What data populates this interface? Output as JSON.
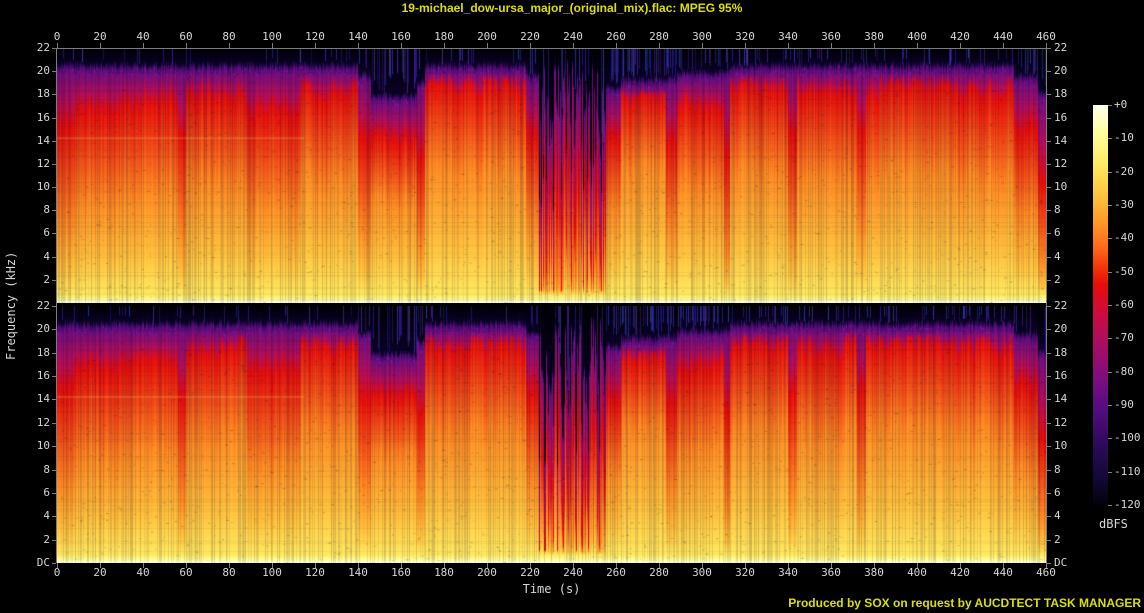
{
  "title": "19-michael_dow-ursa_major_(original_mix).flac: MPEG 95%",
  "footer": "Produced by SOX on request by AUCDTECT TASK MANAGER",
  "colors": {
    "background": "#000000",
    "title_text": "#dede00",
    "footer_text": "#dede00",
    "axis_text": "#d6d6d6",
    "axis_line": "#7d7d7d"
  },
  "chart_data": {
    "type": "heatmap",
    "subtype": "stereo-audio-spectrogram",
    "xlabel": "Time (s)",
    "ylabel": "Frequency (kHz)",
    "x_range_s": [
      0,
      460
    ],
    "freq_range_khz": [
      0,
      22
    ],
    "x_ticks_s": [
      0,
      20,
      40,
      60,
      80,
      100,
      120,
      140,
      160,
      180,
      200,
      220,
      240,
      260,
      280,
      300,
      320,
      340,
      360,
      380,
      400,
      420,
      440,
      460
    ],
    "freq_tick_labels": [
      "22",
      "20",
      "18",
      "16",
      "14",
      "12",
      "10",
      "8",
      "6",
      "4",
      "2",
      "DC"
    ],
    "channels": [
      {
        "name": "left",
        "seed": 11
      },
      {
        "name": "right",
        "seed": 47
      }
    ],
    "colorbar": {
      "unit": "dBFS",
      "range_db": [
        0,
        -120
      ],
      "tick_labels": [
        "+0",
        "-10",
        "-20",
        "-30",
        "-40",
        "-50",
        "-60",
        "-70",
        "-80",
        "-90",
        "-100",
        "-110",
        "-120"
      ],
      "stops": [
        [
          0.0,
          "#ffffec"
        ],
        [
          0.07,
          "#ffff9d"
        ],
        [
          0.15,
          "#ffe95f"
        ],
        [
          0.23,
          "#ffc13d"
        ],
        [
          0.3,
          "#ff9426"
        ],
        [
          0.36,
          "#fb6518"
        ],
        [
          0.41,
          "#f03209"
        ],
        [
          0.45,
          "#e60d0b"
        ],
        [
          0.52,
          "#cc0c3f"
        ],
        [
          0.6,
          "#a80e63"
        ],
        [
          0.68,
          "#7f0e7d"
        ],
        [
          0.75,
          "#5a0d82"
        ],
        [
          0.81,
          "#3d0b6b"
        ],
        [
          0.87,
          "#260a52"
        ],
        [
          0.93,
          "#150837"
        ],
        [
          1.0,
          "#03010f"
        ]
      ]
    },
    "mpeg_lowpass_khz": 20.4,
    "segments": [
      {
        "t0": 0,
        "t1": 8,
        "i": 0.55,
        "cut": 20.4,
        "st": 0.05
      },
      {
        "t0": 8,
        "t1": 30,
        "i": 0.72,
        "cut": 20.4,
        "st": 0.06
      },
      {
        "t0": 30,
        "t1": 56,
        "i": 0.78,
        "cut": 20.4,
        "st": 0.07
      },
      {
        "t0": 56,
        "t1": 60,
        "i": 0.45,
        "cut": 20.4,
        "st": 0.1
      },
      {
        "t0": 60,
        "t1": 88,
        "i": 0.85,
        "cut": 20.4,
        "st": 0.07
      },
      {
        "t0": 88,
        "t1": 113,
        "i": 0.68,
        "cut": 20.4,
        "st": 0.1
      },
      {
        "t0": 113,
        "t1": 140,
        "i": 0.88,
        "cut": 20.4,
        "st": 0.12
      },
      {
        "t0": 140,
        "t1": 146,
        "i": 0.5,
        "cut": 19.6,
        "st": 0.45
      },
      {
        "t0": 146,
        "t1": 167,
        "i": 0.73,
        "cut": 17.8,
        "st": 0.4
      },
      {
        "t0": 167,
        "t1": 171,
        "i": 0.42,
        "cut": 19.0,
        "st": 0.35
      },
      {
        "t0": 171,
        "t1": 218,
        "i": 0.93,
        "cut": 20.4,
        "st": 0.1
      },
      {
        "t0": 218,
        "t1": 224,
        "i": 0.55,
        "cut": 19.6,
        "st": 0.3
      },
      {
        "t0": 224,
        "t1": 255,
        "i": 0.2,
        "cut": 15.0,
        "st": 0.15,
        "spiky": true
      },
      {
        "t0": 255,
        "t1": 262,
        "i": 0.62,
        "cut": 18.5,
        "st": 0.35
      },
      {
        "t0": 262,
        "t1": 283,
        "i": 0.96,
        "cut": 19.2,
        "st": 0.5
      },
      {
        "t0": 283,
        "t1": 288,
        "i": 0.52,
        "cut": 19.3,
        "st": 0.5
      },
      {
        "t0": 288,
        "t1": 310,
        "i": 0.8,
        "cut": 19.8,
        "st": 0.4
      },
      {
        "t0": 310,
        "t1": 313,
        "i": 0.35,
        "cut": 20.0,
        "st": 0.3
      },
      {
        "t0": 313,
        "t1": 340,
        "i": 0.92,
        "cut": 20.4,
        "st": 0.28
      },
      {
        "t0": 340,
        "t1": 344,
        "i": 0.46,
        "cut": 20.4,
        "st": 0.2
      },
      {
        "t0": 344,
        "t1": 372,
        "i": 0.88,
        "cut": 20.4,
        "st": 0.16
      },
      {
        "t0": 372,
        "t1": 376,
        "i": 0.52,
        "cut": 20.4,
        "st": 0.16
      },
      {
        "t0": 376,
        "t1": 414,
        "i": 0.93,
        "cut": 20.4,
        "st": 0.18
      },
      {
        "t0": 414,
        "t1": 445,
        "i": 0.88,
        "cut": 20.4,
        "st": 0.25
      },
      {
        "t0": 445,
        "t1": 456,
        "i": 0.62,
        "cut": 19.5,
        "st": 0.45
      },
      {
        "t0": 456,
        "t1": 460,
        "i": 0.3,
        "cut": 18.0,
        "st": 0.1
      }
    ],
    "tone_lines": [
      {
        "t0": 0,
        "t1": 115,
        "khz": 14.3
      }
    ]
  }
}
